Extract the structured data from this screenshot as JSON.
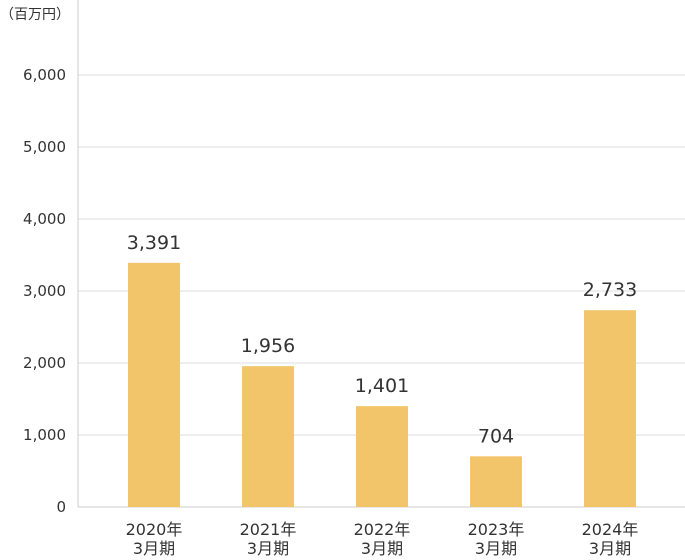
{
  "chart_data": {
    "type": "bar",
    "unit_label": "（百万円）",
    "categories": [
      [
        "2020年",
        "3月期"
      ],
      [
        "2021年",
        "3月期"
      ],
      [
        "2022年",
        "3月期"
      ],
      [
        "2023年",
        "3月期"
      ],
      [
        "2024年",
        "3月期"
      ]
    ],
    "values": [
      3391,
      1956,
      1401,
      704,
      2733
    ],
    "value_labels": [
      "3,391",
      "1,956",
      "1,401",
      "704",
      "2,733"
    ],
    "y_ticks": [
      0,
      1000,
      2000,
      3000,
      4000,
      5000,
      6000
    ],
    "y_tick_labels": [
      "0",
      "1,000",
      "2,000",
      "3,000",
      "4,000",
      "5,000",
      "6,000"
    ],
    "ylim": [
      0,
      6000
    ],
    "grid": true,
    "legend": "none",
    "colors": {
      "bar": "#F2C56B",
      "grid": "#DDDDDD",
      "axis": "#CCCCCC",
      "text": "#333333"
    }
  }
}
